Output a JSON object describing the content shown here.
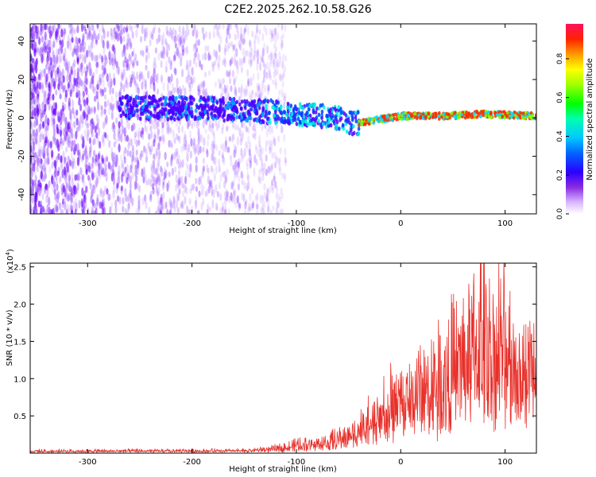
{
  "title": "C2E2.2025.262.10.58.G26",
  "colors": {
    "signal": "#e8302a",
    "frame": "#000000"
  },
  "chart_data": [
    {
      "type": "heatmap",
      "title": "C2E2.2025.262.10.58.G26",
      "xlabel": "Height of straight line (km)",
      "ylabel": "Frequency (Hz)",
      "xlim": [
        -355,
        130
      ],
      "ylim": [
        -50,
        49
      ],
      "xticks": [
        "-300",
        "-200",
        "-100",
        "0",
        "100"
      ],
      "xtick_values": [
        -300,
        -200,
        -100,
        0,
        100
      ],
      "yticks": [
        "-40",
        "-20",
        "0",
        "20",
        "40"
      ],
      "ytick_values": [
        -40,
        -20,
        0,
        20,
        40
      ],
      "colorbar": {
        "label": "Normalized spectral amplitude",
        "range": [
          0,
          0.98
        ],
        "ticks": [
          "0.0",
          "0.2",
          "0.4",
          "0.6",
          "0.8"
        ],
        "tick_values": [
          0.0,
          0.2,
          0.4,
          0.6,
          0.8
        ]
      },
      "ridge": {
        "description_points_height_km": [
          -340,
          -200,
          -120,
          -60,
          -45,
          0,
          40,
          80,
          130
        ],
        "description_points_freq_hz": [
          6,
          5,
          3,
          0,
          -3,
          1,
          1,
          2,
          1
        ]
      }
    },
    {
      "type": "line",
      "xlabel": "Height of straight line (km)",
      "ylabel": "SNR (10 * v/v)",
      "multiplier_label": "(x10",
      "multiplier_exponent": "4",
      "multiplier_close": ")",
      "xlim": [
        -355,
        130
      ],
      "ylim": [
        0,
        25500
      ],
      "xticks": [
        "-300",
        "-200",
        "-100",
        "0",
        "100"
      ],
      "xtick_values": [
        -300,
        -200,
        -100,
        0,
        100
      ],
      "yticks": [
        "0.5",
        "1.0",
        "1.5",
        "2.0",
        "2.5"
      ],
      "ytick_values": [
        5000,
        10000,
        15000,
        20000,
        25000
      ],
      "envelope_height_km": [
        -355,
        -150,
        -120,
        -100,
        -70,
        -50,
        -30,
        -10,
        0,
        20,
        40,
        60,
        80,
        100,
        130
      ],
      "envelope_snr": [
        400,
        500,
        900,
        1600,
        2200,
        3500,
        6000,
        9000,
        11000,
        13000,
        15000,
        19000,
        23000,
        20000,
        16000
      ]
    }
  ]
}
